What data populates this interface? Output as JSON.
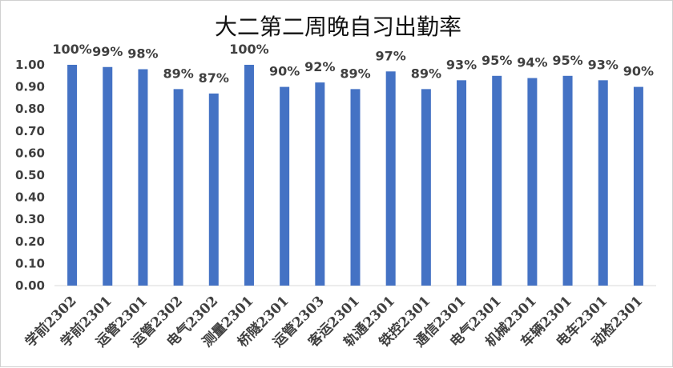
{
  "chart_data": {
    "type": "bar",
    "title": "大二第二周晚自习出勤率",
    "xlabel": "",
    "ylabel": "",
    "categories": [
      "学前2302",
      "学前2301",
      "运管2301",
      "运管2302",
      "电气2302",
      "测量2301",
      "桥隧2301",
      "运管2303",
      "客运2301",
      "轨通2301",
      "铁控2301",
      "通信2301",
      "电气2301",
      "机械2301",
      "车辆2301",
      "电车2301",
      "动检2301"
    ],
    "values": [
      1.0,
      0.99,
      0.98,
      0.89,
      0.87,
      1.0,
      0.9,
      0.92,
      0.89,
      0.97,
      0.89,
      0.93,
      0.95,
      0.94,
      0.95,
      0.93,
      0.9
    ],
    "data_labels": [
      "100%",
      "99%",
      "98%",
      "89%",
      "87%",
      "100%",
      "90%",
      "92%",
      "89%",
      "97%",
      "89%",
      "93%",
      "95%",
      "94%",
      "95%",
      "93%",
      "90%"
    ],
    "y_ticks": [
      "0.00",
      "0.10",
      "0.20",
      "0.30",
      "0.40",
      "0.50",
      "0.60",
      "0.70",
      "0.80",
      "0.90",
      "1.00"
    ],
    "ylim": [
      0,
      1.0
    ],
    "grid": false,
    "legend": "none",
    "bar_color": "#4472C4",
    "axis_color": "#d9d9d9"
  }
}
